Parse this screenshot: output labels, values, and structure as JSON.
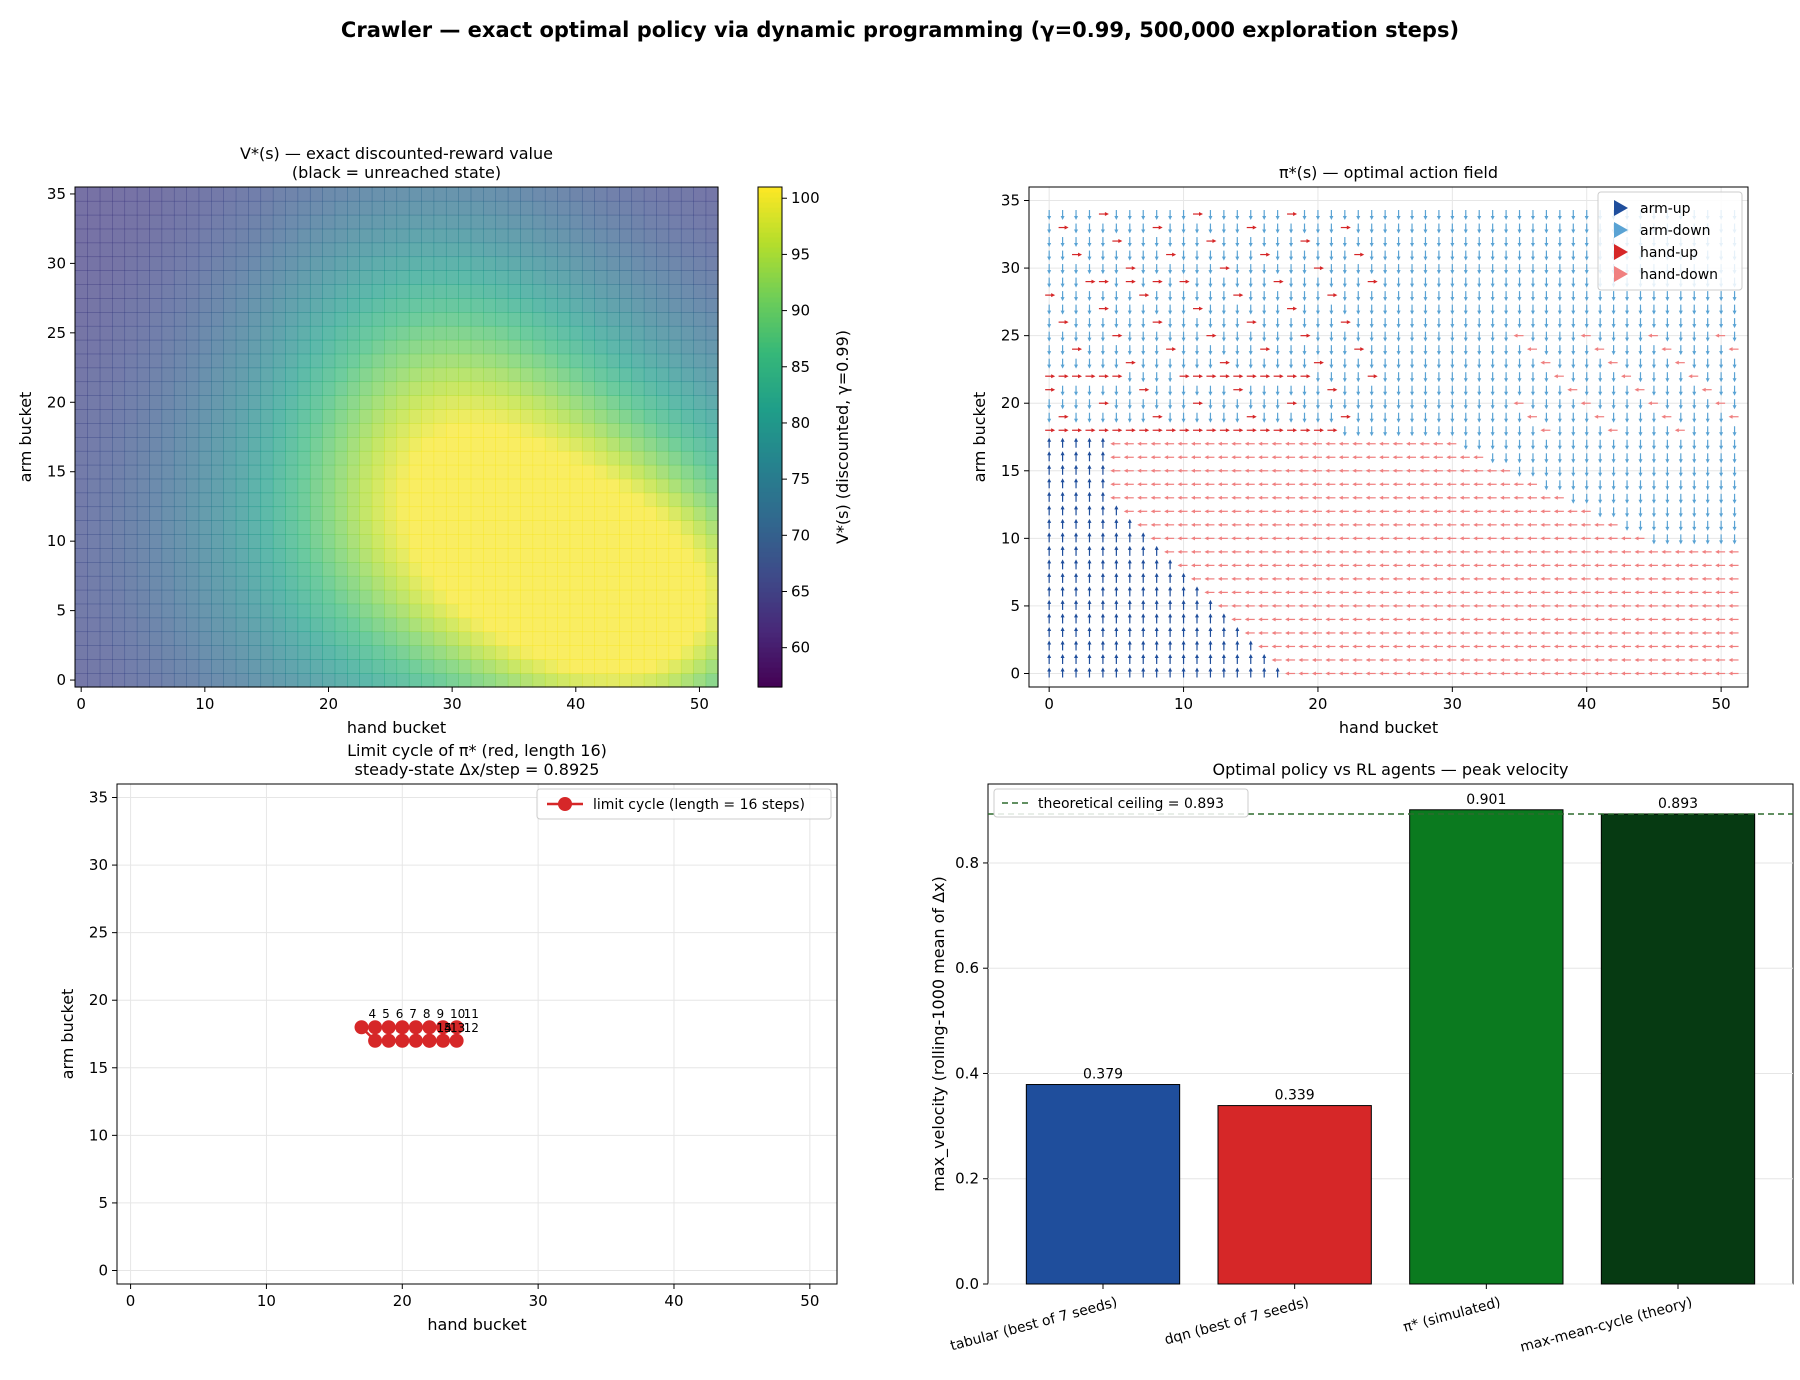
{
  "figure": {
    "suptitle": "Crawler — exact optimal policy via dynamic programming  (γ=0.99, 500,000 exploration steps)"
  },
  "chart_data": [
    {
      "type": "heatmap",
      "title": "V*(s) — exact discounted-reward value",
      "subtitle": "(black = unreached state)",
      "xlabel": "hand bucket",
      "ylabel": "arm bucket",
      "x_range": [
        0,
        51
      ],
      "y_range": [
        0,
        35
      ],
      "x_ticks": [
        0,
        10,
        20,
        30,
        40,
        50
      ],
      "y_ticks": [
        0,
        5,
        10,
        15,
        20,
        25,
        30,
        35
      ],
      "colorbar": {
        "label": "V*(s)   (discounted, γ=0.99)",
        "ticks": [
          60,
          65,
          70,
          75,
          80,
          85,
          90,
          95,
          100
        ],
        "range": [
          56.5,
          101
        ],
        "colormap": "viridis"
      },
      "value_model": {
        "base": 64,
        "peaks": [
          {
            "hand": 35,
            "arm": 10,
            "amplitude": 37,
            "spread_hand": 15,
            "spread_arm": 10
          },
          {
            "hand": 46,
            "arm": 4,
            "amplitude": 20,
            "spread_hand": 8,
            "spread_arm": 6
          },
          {
            "hand": 28,
            "arm": 24,
            "amplitude": 14,
            "spread_hand": 10,
            "spread_arm": 9
          }
        ],
        "min_value": 58,
        "max_value": 100.5
      }
    },
    {
      "type": "scatter",
      "title": "π*(s) — optimal action field",
      "xlabel": "hand bucket",
      "ylabel": "arm bucket",
      "x_range": [
        0,
        51
      ],
      "y_range": [
        0,
        35
      ],
      "x_ticks": [
        0,
        10,
        20,
        30,
        40,
        50
      ],
      "y_ticks": [
        0,
        5,
        10,
        15,
        20,
        25,
        30,
        35
      ],
      "legend": {
        "placement": "top-right",
        "entries": [
          {
            "name": "arm-up",
            "color": "#1f4e9c"
          },
          {
            "name": "arm-down",
            "color": "#5aa3d4"
          },
          {
            "name": "hand-up",
            "color": "#d62728"
          },
          {
            "name": "hand-down",
            "color": "#f08080"
          }
        ]
      },
      "regions_description": "arm-up along the low-hand edge below arm 18; hand-down over the lower-right region; arm-down over the upper region; hand-up rows scattered near the left and middle for arm 17-35",
      "top_arm_row_visible": 34
    },
    {
      "type": "line",
      "title": "Limit cycle of π* (red, length 16)",
      "subtitle": "steady-state Δx/step = 0.8925",
      "xlabel": "hand bucket",
      "ylabel": "arm bucket",
      "x_range": [
        -1,
        52
      ],
      "y_range": [
        -1,
        36
      ],
      "x_ticks": [
        0,
        10,
        20,
        30,
        40,
        50
      ],
      "y_ticks": [
        0,
        5,
        10,
        15,
        20,
        25,
        30,
        35
      ],
      "legend": {
        "placement": "top-right",
        "entries": [
          {
            "name": "limit cycle  (length = 16 steps)",
            "color": "#d62728"
          }
        ]
      },
      "points": [
        {
          "step": "0",
          "hand": 21,
          "arm": 17
        },
        {
          "step": "1",
          "hand": 20,
          "arm": 17
        },
        {
          "step": "2",
          "hand": 19,
          "arm": 17
        },
        {
          "step": "3",
          "hand": 18,
          "arm": 17
        },
        {
          "step": "4",
          "hand": 17,
          "arm": 18
        },
        {
          "step": "5",
          "hand": 18,
          "arm": 18
        },
        {
          "step": "6",
          "hand": 19,
          "arm": 18
        },
        {
          "step": "7",
          "hand": 20,
          "arm": 18
        },
        {
          "step": "8",
          "hand": 21,
          "arm": 18
        },
        {
          "step": "9",
          "hand": 22,
          "arm": 18
        },
        {
          "step": "10",
          "hand": 23,
          "arm": 18
        },
        {
          "step": "11",
          "hand": 24,
          "arm": 18
        },
        {
          "step": "12",
          "hand": 24,
          "arm": 17
        },
        {
          "step": "13",
          "hand": 23,
          "arm": 17
        },
        {
          "step": "14",
          "hand": 22,
          "arm": 17
        },
        {
          "step": "15",
          "hand": 22,
          "arm": 17
        }
      ]
    },
    {
      "type": "bar",
      "title": "Optimal policy vs RL agents — peak velocity",
      "ylabel": "max_velocity (rolling-1000 mean of Δx)",
      "ylim": [
        0,
        0.95
      ],
      "y_ticks": [
        0.0,
        0.2,
        0.4,
        0.6,
        0.8
      ],
      "categories": [
        "tabular (best of 7 seeds)",
        "dqn (best of 7 seeds)",
        "π* (simulated)",
        "max-mean-cycle (theory)"
      ],
      "values": [
        0.379,
        0.339,
        0.901,
        0.893
      ],
      "value_labels": [
        "0.379",
        "0.339",
        "0.901",
        "0.893"
      ],
      "colors": [
        "#1f4e9c",
        "#d62728",
        "#0b7a1f",
        "#063a12"
      ],
      "reference_line": {
        "value": 0.893,
        "label": "theoretical ceiling = 0.893",
        "color": "#2e6b2e"
      },
      "legend": {
        "placement": "top-left"
      }
    }
  ]
}
